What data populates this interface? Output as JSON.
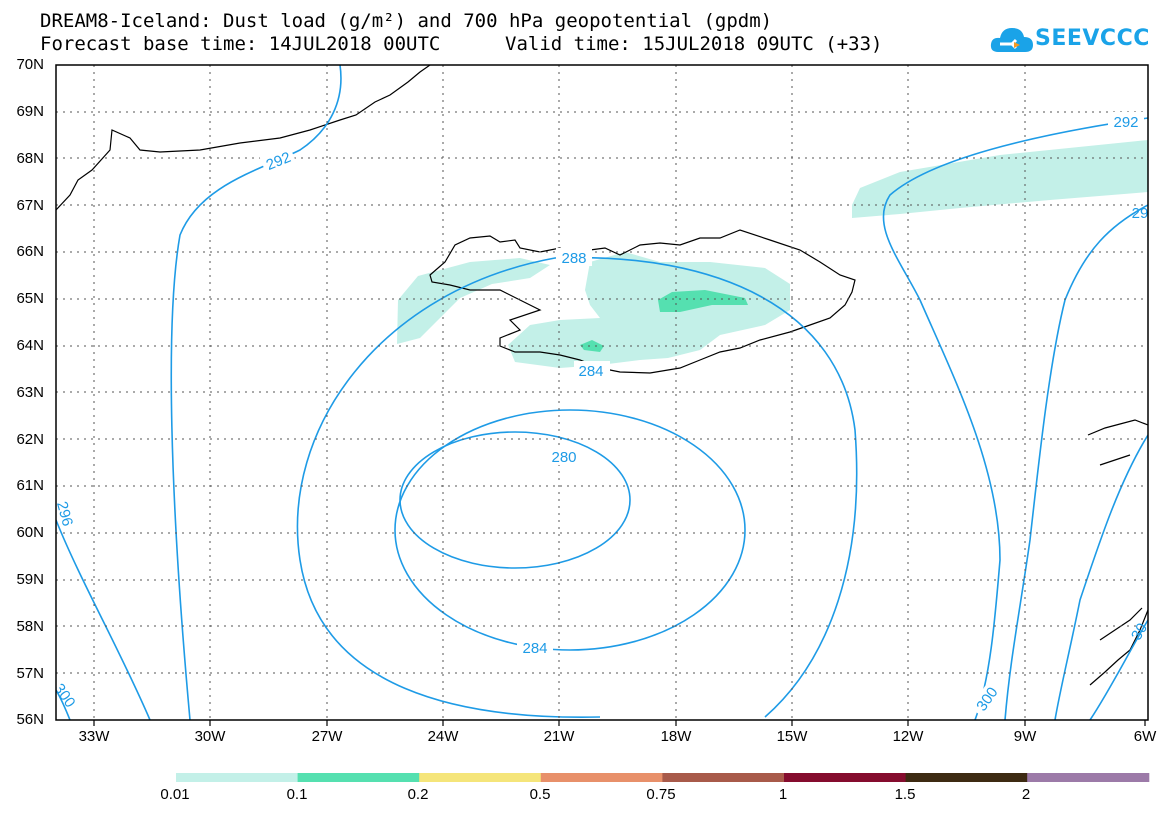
{
  "title": {
    "line1": "DREAM8-Iceland: Dust load (g/m²) and 700 hPa geopotential (gpdm)",
    "line2_left": "Forecast base time: 14JUL2018 00UTC",
    "line2_right": "Valid time: 15JUL2018 09UTC (+33)"
  },
  "logo": {
    "text": "SEEVCCC",
    "color": "#1aa3e8",
    "icon": "cloud-icon"
  },
  "axes": {
    "lat_labels": [
      "70N",
      "69N",
      "68N",
      "67N",
      "66N",
      "65N",
      "64N",
      "63N",
      "62N",
      "61N",
      "60N",
      "59N",
      "58N",
      "57N",
      "56N"
    ],
    "lon_labels": [
      "33W",
      "30W",
      "27W",
      "24W",
      "21W",
      "18W",
      "15W",
      "12W",
      "9W",
      "6W"
    ],
    "lat_range": [
      56,
      70
    ],
    "lon_range": [
      -34.5,
      -6
    ]
  },
  "contours": {
    "color": "#1e9be6",
    "labels": [
      "292",
      "292",
      "288",
      "284",
      "280",
      "284",
      "296",
      "300",
      "300",
      "29",
      "30"
    ]
  },
  "colorbar": {
    "labels": [
      "0.01",
      "0.1",
      "0.2",
      "0.5",
      "0.75",
      "1",
      "1.5",
      "2"
    ],
    "colors": [
      "#c3f0e8",
      "#55e0b0",
      "#f5e57a",
      "#e8906a",
      "#a85a4a",
      "#850c2e",
      "#3d2a12",
      "#9c7aa8"
    ]
  }
}
